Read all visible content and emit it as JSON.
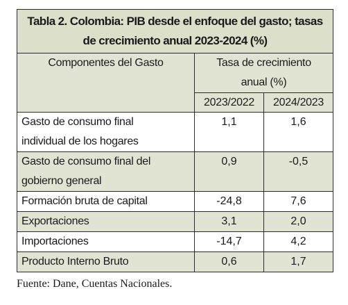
{
  "table": {
    "title_line1": "Tabla 2. Colombia: PIB desde el enfoque del gasto; tasas",
    "title_line2": "de crecimiento anual 2023-2024 (%)",
    "col_components": "Componentes del Gasto",
    "col_rate_line1": "Tasa de crecimiento",
    "col_rate_line2": "anual (%)",
    "col_year1": "2023/2022",
    "col_year2": "2024/2023",
    "rows": [
      {
        "label_line1": "Gasto de consumo final",
        "label_line2": "individual de los hogares",
        "v1": "1,1",
        "v2": "1,6"
      },
      {
        "label_line1": "Gasto de consumo final del",
        "label_line2": "gobierno general",
        "v1": "0,9",
        "v2": "-0,5"
      },
      {
        "label_line1": "Formación bruta de capital",
        "label_line2": "",
        "v1": "-24,8",
        "v2": "7,6"
      },
      {
        "label_line1": "Exportaciones",
        "label_line2": "",
        "v1": "3,1",
        "v2": "2,0"
      },
      {
        "label_line1": "Importaciones",
        "label_line2": "",
        "v1": "-14,7",
        "v2": "4,2"
      },
      {
        "label_line1": "Producto Interno Bruto",
        "label_line2": "",
        "v1": "0,6",
        "v2": "1,7"
      }
    ]
  },
  "source": "Fuente: Dane, Cuentas Nacionales."
}
